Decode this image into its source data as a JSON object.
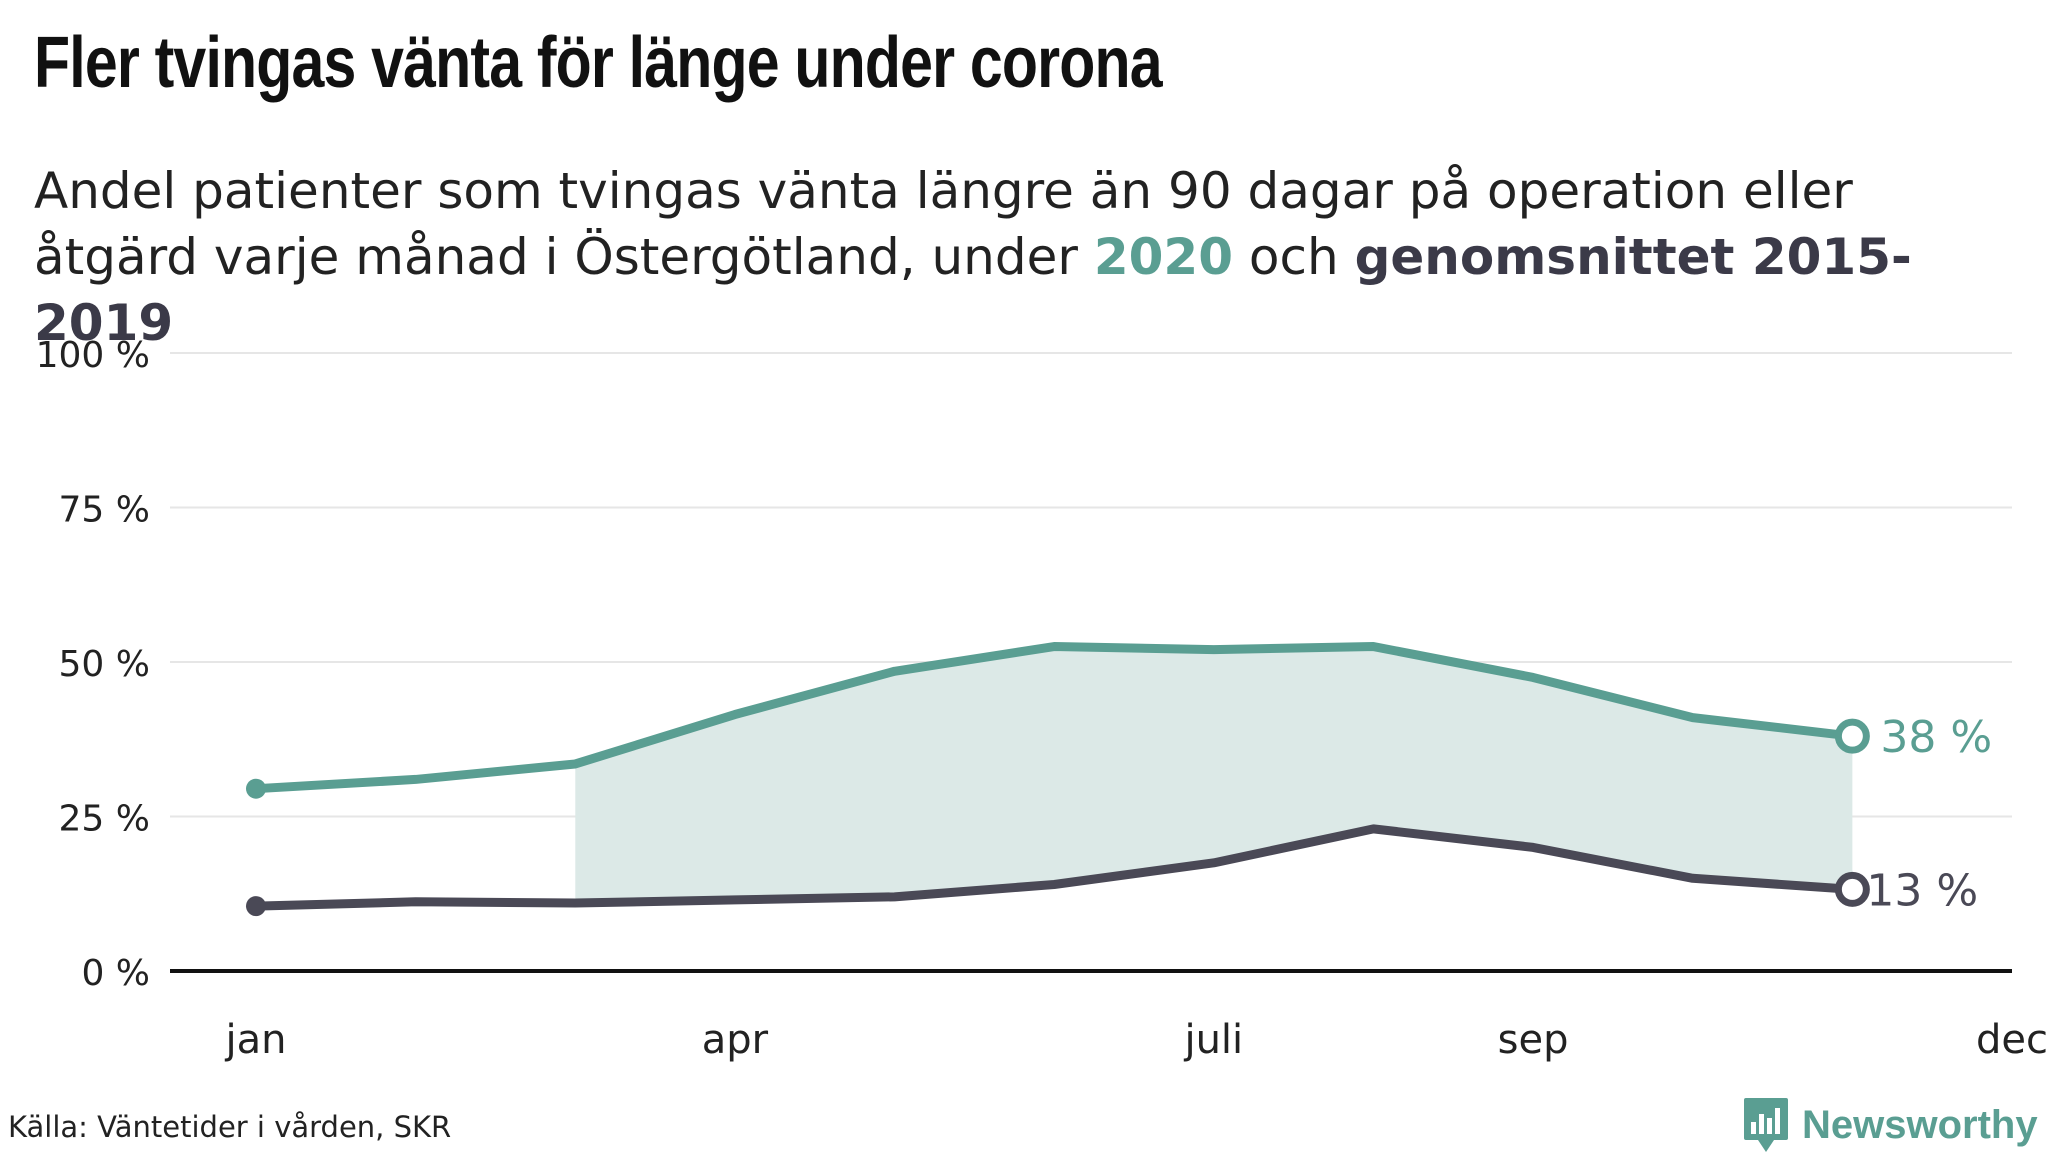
{
  "title": "Fler tvingas vänta för länge under corona",
  "subtitle": {
    "part1": "Andel patienter som tvingas vänta längre än 90 dagar på operation eller åtgärd varje månad i Östergötland, under ",
    "highlight_2020": "2020",
    "part2": " och ",
    "highlight_avg": "genomsnittet 2015-2019"
  },
  "source": "Källa: Väntetider i vården, SKR",
  "brand": {
    "name": "Newsworthy",
    "icon": "bar-chart-speech-bubble-icon"
  },
  "colors": {
    "series_2020": "#5a9e92",
    "series_avg": "#4a4956",
    "fill": "#dce9e7",
    "grid": "#e6e6e6",
    "axis": "#111111"
  },
  "chart_data": {
    "type": "line",
    "x": [
      1,
      2,
      3,
      4,
      5,
      6,
      7,
      8,
      9,
      10,
      11,
      12
    ],
    "ylim": [
      0,
      100
    ],
    "xlim": [
      1,
      12
    ],
    "y_ticks": [
      0,
      25,
      50,
      75,
      100
    ],
    "y_tick_labels": [
      "0 %",
      "25 %",
      "50 %",
      "75 %",
      "100 %"
    ],
    "x_ticks": [
      1,
      4,
      7,
      9,
      12
    ],
    "x_tick_labels": [
      "jan",
      "apr",
      "juli",
      "sep",
      "dec"
    ],
    "grid": true,
    "shaded_range": [
      3,
      11
    ],
    "series": [
      {
        "name": "2020",
        "x": [
          1,
          2,
          3,
          4,
          5,
          6,
          7,
          8,
          9,
          10,
          11
        ],
        "values": [
          29.5,
          31,
          33.5,
          41.5,
          48.5,
          52.5,
          52,
          52.5,
          47.5,
          41,
          38
        ],
        "end_label": "38 %"
      },
      {
        "name": "genomsnittet 2015-2019",
        "x": [
          1,
          2,
          3,
          4,
          5,
          6,
          7,
          8,
          9,
          10,
          11
        ],
        "values": [
          10.5,
          11.2,
          11,
          11.5,
          12,
          14,
          17.5,
          23,
          20,
          15,
          13.2
        ],
        "end_label": "13 %"
      }
    ]
  }
}
